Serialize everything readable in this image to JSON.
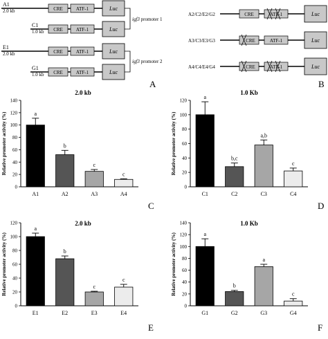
{
  "panels": {
    "A": {
      "letter": "A",
      "constructs": [
        {
          "name": "A1",
          "size": "2.0 kb",
          "cre": "CRE",
          "atf": "ATF-1",
          "luc": "Luc"
        },
        {
          "name": "C1",
          "size": "1.0 kb",
          "cre": "CRE",
          "atf": "ATF-1",
          "luc": "Luc"
        },
        {
          "name": "E1",
          "size": "2.0 kb",
          "cre": "CRE",
          "atf": "ATF-1",
          "luc": "Luc"
        },
        {
          "name": "G1",
          "size": "1.0 kb",
          "cre": "CRE",
          "atf": "ATF-1",
          "luc": "Luc"
        }
      ],
      "promoter1": "igf3 promoter 1",
      "promoter2": "igf3 promoter 2",
      "promoter_gene": "igf3",
      "promoter1_suffix": " promoter 1",
      "promoter2_suffix": " promoter 2"
    },
    "B": {
      "letter": "B",
      "constructs": [
        {
          "name": "A2/C2/E2/G2",
          "cre": "CRE",
          "atf": "ATF-1",
          "luc": "Luc"
        },
        {
          "name": "A3/C3/E3/G3",
          "cre": "CRE",
          "atf": "ATF-1",
          "luc": "Luc"
        },
        {
          "name": "A4/C4/E4/G4",
          "cre": "CRE",
          "atf": "ATF-1",
          "luc": "Luc"
        }
      ]
    }
  },
  "chart_data": [
    {
      "panel": "C",
      "type": "bar",
      "title": "2.0 kb",
      "ylabel": "Relative promoter activity (%)",
      "categories": [
        "A1",
        "A2",
        "A3",
        "A4"
      ],
      "values": [
        100,
        52,
        25,
        12
      ],
      "errors": [
        11,
        7,
        3,
        1
      ],
      "significance": [
        "a",
        "b",
        "c",
        "c"
      ],
      "ylim": [
        0,
        140
      ],
      "yticks": [
        0,
        20,
        40,
        60,
        80,
        100,
        120,
        140
      ],
      "colors": [
        "#000000",
        "#555555",
        "#a6a6a6",
        "#ececec"
      ]
    },
    {
      "panel": "D",
      "type": "bar",
      "title": "1.0 Kb",
      "ylabel": "Relative promoter activity (%)",
      "categories": [
        "C1",
        "C2",
        "C3",
        "C4"
      ],
      "values": [
        100,
        28,
        58,
        22
      ],
      "errors": [
        18,
        5,
        7,
        4
      ],
      "significance": [
        "a",
        "b,c",
        "a,b",
        "c"
      ],
      "ylim": [
        0,
        120
      ],
      "yticks": [
        0,
        20,
        40,
        60,
        80,
        100,
        120
      ],
      "colors": [
        "#000000",
        "#555555",
        "#a6a6a6",
        "#ececec"
      ]
    },
    {
      "panel": "E",
      "type": "bar",
      "title": "2.0 kb",
      "ylabel": "Relative promoter activity (%)",
      "categories": [
        "E1",
        "E2",
        "E3",
        "E4"
      ],
      "values": [
        100,
        68,
        20,
        27
      ],
      "errors": [
        5,
        4,
        1,
        4
      ],
      "significance": [
        "a",
        "b",
        "c",
        "c"
      ],
      "ylim": [
        0,
        120
      ],
      "yticks": [
        0,
        20,
        40,
        60,
        80,
        100,
        120
      ],
      "colors": [
        "#000000",
        "#555555",
        "#a6a6a6",
        "#ececec"
      ]
    },
    {
      "panel": "F",
      "type": "bar",
      "title": "1.0 Kb",
      "ylabel": "Relative promoter activity (%)",
      "categories": [
        "G1",
        "G2",
        "G3",
        "G4"
      ],
      "values": [
        100,
        24,
        66,
        8
      ],
      "errors": [
        13,
        2,
        4,
        4
      ],
      "significance": [
        "a",
        "b",
        "a",
        "c"
      ],
      "ylim": [
        0,
        140
      ],
      "yticks": [
        0,
        20,
        40,
        60,
        80,
        100,
        120,
        140
      ],
      "colors": [
        "#000000",
        "#555555",
        "#a6a6a6",
        "#ececec"
      ]
    }
  ]
}
